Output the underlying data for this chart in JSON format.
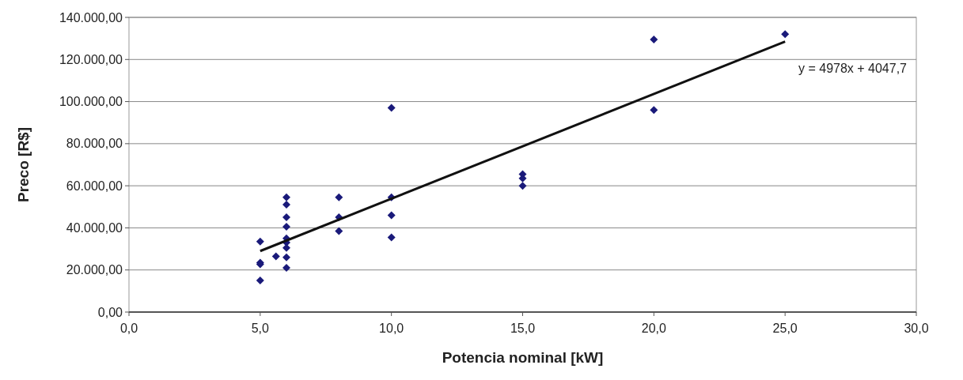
{
  "chart_data": {
    "type": "scatter",
    "xlabel": "Potencia nominal [kW]",
    "ylabel": "Preco [R$]",
    "xlim": [
      0,
      30
    ],
    "xticks": [
      {
        "value": 0,
        "label": "0,0"
      },
      {
        "value": 5,
        "label": "5,0"
      },
      {
        "value": 10,
        "label": "10,0"
      },
      {
        "value": 15,
        "label": "15,0"
      },
      {
        "value": 20,
        "label": "20,0"
      },
      {
        "value": 25,
        "label": "25,0"
      },
      {
        "value": 30,
        "label": "30,0"
      }
    ],
    "ylim": [
      0,
      140000
    ],
    "yticks": [
      {
        "value": 0,
        "label": "0,00"
      },
      {
        "value": 20000,
        "label": "20.000,00"
      },
      {
        "value": 40000,
        "label": "40.000,00"
      },
      {
        "value": 60000,
        "label": "60.000,00"
      },
      {
        "value": 80000,
        "label": "80.000,00"
      },
      {
        "value": 100000,
        "label": "100.000,00"
      },
      {
        "value": 120000,
        "label": "120.000,00"
      },
      {
        "value": 140000,
        "label": "140.000,00"
      }
    ],
    "grid": "y",
    "annotations": [
      "y = 4978x + 4047,7"
    ],
    "series": [
      {
        "color": "#1a1a7a",
        "marker": "diamond",
        "x": [
          5,
          5,
          5,
          5,
          5.6,
          6,
          6,
          6,
          6,
          6,
          6,
          6,
          6,
          6,
          8,
          8,
          8,
          10,
          10,
          10,
          10,
          15,
          15,
          15,
          20,
          20,
          25
        ],
        "values": [
          33500,
          23500,
          22700,
          15000,
          26500,
          54500,
          51000,
          45000,
          40500,
          35000,
          33000,
          30500,
          26000,
          21000,
          54500,
          45000,
          38500,
          97000,
          54500,
          46000,
          35500,
          65500,
          63500,
          60000,
          129500,
          96000,
          132000
        ]
      },
      {
        "type": "line",
        "color": "#111111",
        "marker": "none",
        "x": [
          5,
          25
        ],
        "values": [
          29000,
          128500
        ]
      }
    ]
  }
}
